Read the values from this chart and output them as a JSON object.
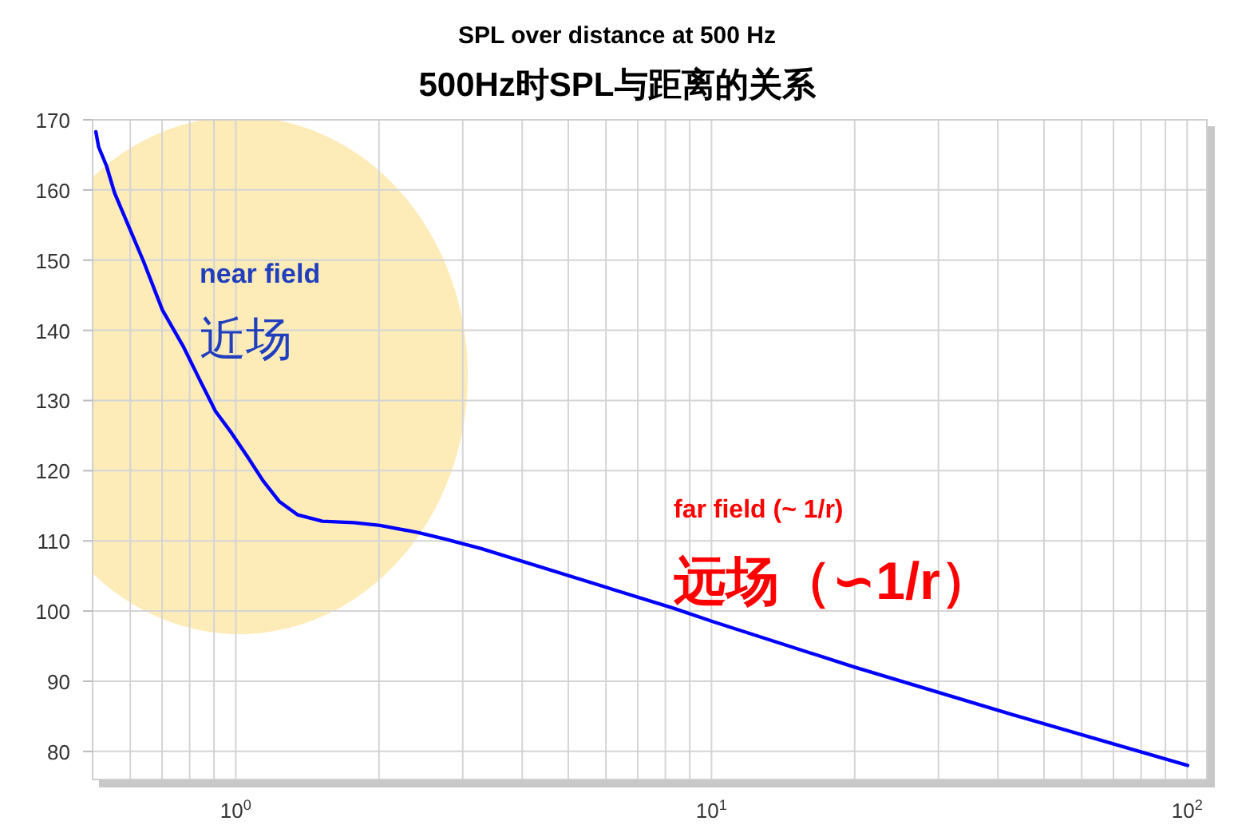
{
  "chart_data": {
    "type": "line",
    "title": "SPL over distance at 500 Hz",
    "subtitle": "500Hz时SPL与距离的关系",
    "annotations": [
      "near field",
      "近场",
      "far field  (~ 1/r)",
      "远场（∽1/r）"
    ],
    "log": "x",
    "grid": true,
    "marker": "none",
    "line_style": "solid",
    "xlim": [
      0.5,
      110
    ],
    "ylim": [
      76,
      170
    ],
    "xticks": [
      {
        "value": 0.6,
        "label": null
      },
      {
        "value": 0.7,
        "label": null
      },
      {
        "value": 0.8,
        "label": null
      },
      {
        "value": 0.9,
        "label": null
      },
      {
        "value": 1,
        "label": "10$^{0}$"
      },
      {
        "value": 2,
        "label": null
      },
      {
        "value": 3,
        "label": null
      },
      {
        "value": 4,
        "label": null
      },
      {
        "value": 5,
        "label": null
      },
      {
        "value": 6,
        "label": null
      },
      {
        "value": 7,
        "label": null
      },
      {
        "value": 8,
        "label": null
      },
      {
        "value": 9,
        "label": null
      },
      {
        "value": 10,
        "label": "10$^{1}$"
      },
      {
        "value": 20,
        "label": null
      },
      {
        "value": 30,
        "label": null
      },
      {
        "value": 40,
        "label": null
      },
      {
        "value": 50,
        "label": null
      },
      {
        "value": 60,
        "label": null
      },
      {
        "value": 70,
        "label": null
      },
      {
        "value": 80,
        "label": null
      },
      {
        "value": 90,
        "label": null
      },
      {
        "value": 100,
        "label": "10$^{2}$"
      }
    ],
    "yticks": [
      80,
      90,
      100,
      110,
      120,
      130,
      140,
      150,
      160,
      170
    ],
    "series": [
      {
        "color": "#0000ff",
        "x": [
          0.508,
          0.515,
          0.535,
          0.556,
          0.593,
          0.64,
          0.701,
          0.777,
          0.839,
          0.906,
          0.979,
          1.058,
          1.14,
          1.235,
          1.35,
          1.52,
          1.77,
          2.01,
          2.41,
          2.74,
          3.28,
          8.33,
          10.06,
          20,
          43.1,
          100.2
        ],
        "values": [
          168.3,
          166.1,
          163.4,
          159.6,
          155.1,
          149.8,
          142.9,
          137.6,
          133.0,
          128.5,
          125.4,
          122.0,
          118.6,
          115.6,
          113.7,
          112.8,
          112.6,
          112.2,
          111.2,
          110.3,
          108.9,
          100.4,
          98.5,
          92.0,
          85.2,
          78.0
        ]
      }
    ]
  }
}
